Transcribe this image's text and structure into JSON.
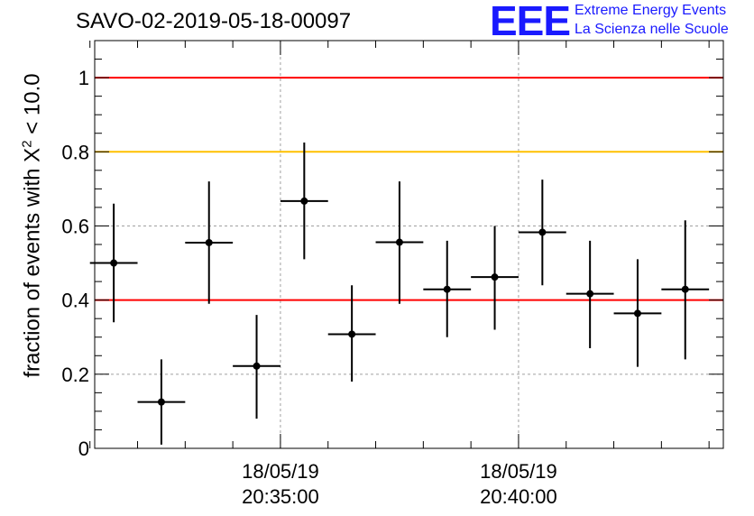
{
  "header": {
    "title": "SAVO-02-2019-05-18-00097",
    "logo_text": "EEE",
    "logo_line1": "Extreme Energy Events",
    "logo_line2": "La Scienza nelle Scuole"
  },
  "axis": {
    "ylabel_main": "fraction of events with X",
    "ylabel_sup": "2",
    "ylabel_tail": " < 10.0"
  },
  "colors": {
    "threshold_red": "#ff0000",
    "threshold_yellow": "#ffc000",
    "grid": "#a0a0a0",
    "marker": "#000000"
  },
  "chart_data": {
    "type": "scatter",
    "title": "SAVO-02-2019-05-18-00097",
    "xlabel": "",
    "ylabel": "fraction of events with X^2 < 10.0",
    "ylim": [
      0,
      1.1
    ],
    "y_ticks": [
      {
        "value": 0,
        "label": "0"
      },
      {
        "value": 0.2,
        "label": "0.2"
      },
      {
        "value": 0.4,
        "label": "0.4"
      },
      {
        "value": 0.6,
        "label": "0.6"
      },
      {
        "value": 0.8,
        "label": "0.8"
      },
      {
        "value": 1,
        "label": "1"
      }
    ],
    "x_ticks": [
      {
        "index": 3.5,
        "date": "18/05/19",
        "time": "20:35:00"
      },
      {
        "index": 8.5,
        "date": "18/05/19",
        "time": "20:40:00"
      }
    ],
    "xlim": [
      -0.4,
      12.8
    ],
    "grid": true,
    "horizontal_lines": [
      {
        "y": 1.0,
        "color": "red"
      },
      {
        "y": 0.8,
        "color": "yellow"
      },
      {
        "y": 0.4,
        "color": "red"
      }
    ],
    "points": [
      {
        "y": 0.5,
        "ylow": 0.34,
        "yhigh": 0.66
      },
      {
        "y": 0.125,
        "ylow": 0.01,
        "yhigh": 0.24
      },
      {
        "y": 0.555,
        "ylow": 0.39,
        "yhigh": 0.72
      },
      {
        "y": 0.222,
        "ylow": 0.08,
        "yhigh": 0.36
      },
      {
        "y": 0.667,
        "ylow": 0.51,
        "yhigh": 0.825
      },
      {
        "y": 0.308,
        "ylow": 0.18,
        "yhigh": 0.44
      },
      {
        "y": 0.556,
        "ylow": 0.39,
        "yhigh": 0.72
      },
      {
        "y": 0.429,
        "ylow": 0.3,
        "yhigh": 0.56
      },
      {
        "y": 0.462,
        "ylow": 0.32,
        "yhigh": 0.6
      },
      {
        "y": 0.583,
        "ylow": 0.44,
        "yhigh": 0.725
      },
      {
        "y": 0.417,
        "ylow": 0.27,
        "yhigh": 0.56
      },
      {
        "y": 0.364,
        "ylow": 0.22,
        "yhigh": 0.51
      },
      {
        "y": 0.429,
        "ylow": 0.24,
        "yhigh": 0.615
      }
    ]
  }
}
